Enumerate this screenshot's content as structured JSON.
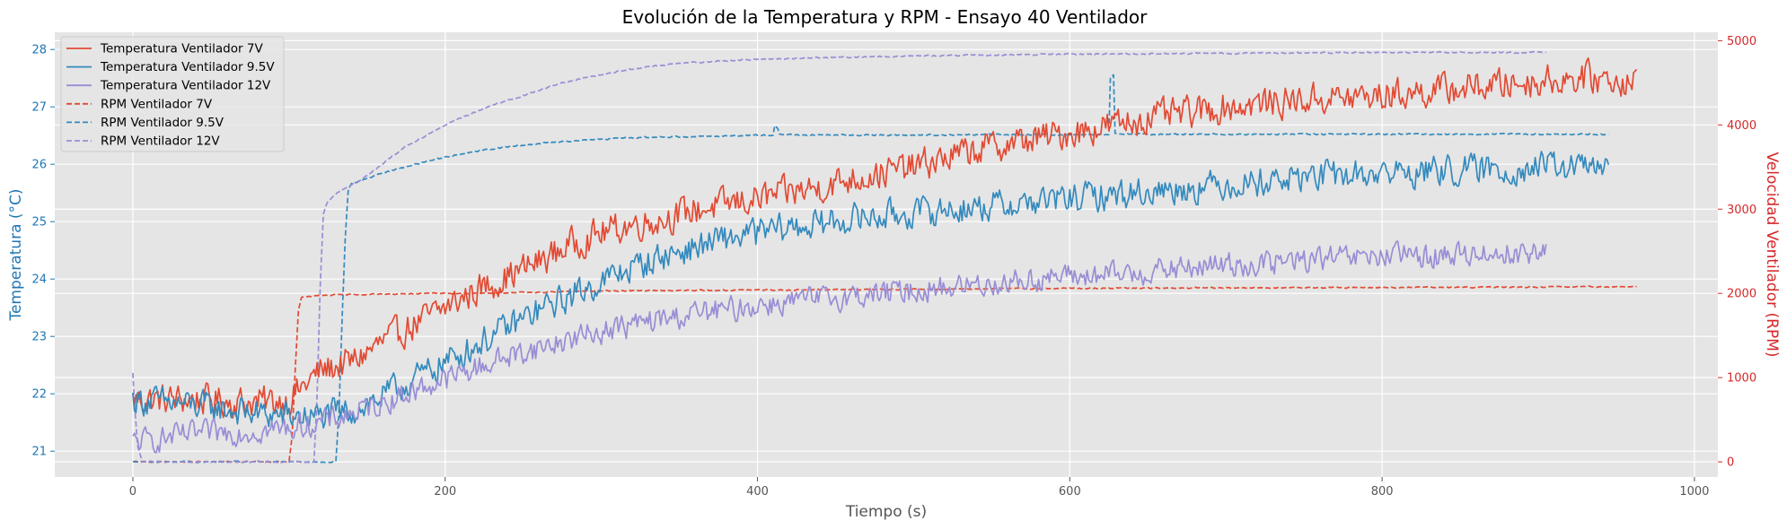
{
  "chart_data": {
    "type": "line",
    "title": "Evolución de la Temperatura y RPM - Ensayo 40 Ventilador",
    "xlabel": "Tiempo (s)",
    "ylabel_left": "Temperatura (°C)",
    "ylabel_right": "Velocidad Ventilador (RPM)",
    "xlim": [
      -50,
      1015
    ],
    "ylim_left": [
      20.55,
      28.3
    ],
    "ylim_right": [
      -180,
      5100
    ],
    "xticks": [
      "0",
      "200",
      "400",
      "600",
      "800",
      "1000"
    ],
    "yticks_left": [
      "21",
      "22",
      "23",
      "24",
      "25",
      "26",
      "27",
      "28"
    ],
    "yticks_right": [
      "0",
      "1000",
      "2000",
      "3000",
      "4000",
      "5000"
    ],
    "grid": true,
    "legend_position": "top-left",
    "colors": {
      "red": "#E24A33",
      "blue": "#348ABD",
      "purple": "#988ED5",
      "left_axis": "#1f77b4",
      "right_axis": "#d62728",
      "background": "#E5E5E5"
    },
    "series": [
      {
        "name": "Temperatura Ventilador 7V",
        "axis": "left",
        "style": "solid",
        "color": "#E24A33",
        "x": [
          0,
          40,
          80,
          100,
          120,
          140,
          160,
          180,
          200,
          220,
          240,
          260,
          280,
          300,
          320,
          340,
          360,
          380,
          400,
          420,
          440,
          460,
          480,
          500,
          520,
          540,
          560,
          580,
          600,
          620,
          640,
          660,
          680,
          700,
          720,
          740,
          760,
          780,
          800,
          820,
          840,
          860,
          880,
          900,
          920,
          940,
          963
        ],
        "values": [
          21.9,
          21.9,
          21.85,
          21.9,
          22.4,
          22.55,
          22.9,
          23.2,
          23.5,
          23.8,
          24.05,
          24.3,
          24.6,
          24.8,
          24.95,
          25.05,
          25.2,
          25.3,
          25.4,
          25.5,
          25.6,
          25.75,
          25.85,
          25.95,
          26.1,
          26.25,
          26.35,
          26.45,
          26.55,
          26.65,
          26.75,
          26.85,
          26.9,
          27.0,
          27.05,
          27.1,
          27.15,
          27.15,
          27.2,
          27.25,
          27.3,
          27.35,
          27.4,
          27.45,
          27.5,
          27.5,
          27.45
        ],
        "noise": 0.38
      },
      {
        "name": "Temperatura Ventilador 9.5V",
        "axis": "left",
        "style": "solid",
        "color": "#348ABD",
        "x": [
          0,
          40,
          80,
          100,
          120,
          140,
          160,
          180,
          200,
          220,
          240,
          260,
          280,
          300,
          320,
          340,
          360,
          380,
          400,
          420,
          440,
          460,
          480,
          500,
          520,
          540,
          560,
          580,
          600,
          620,
          640,
          660,
          680,
          700,
          720,
          740,
          760,
          780,
          800,
          820,
          840,
          860,
          880,
          900,
          920,
          945
        ],
        "values": [
          21.9,
          21.8,
          21.65,
          21.6,
          21.6,
          21.7,
          21.95,
          22.25,
          22.55,
          22.85,
          23.15,
          23.45,
          23.7,
          23.95,
          24.2,
          24.4,
          24.55,
          24.7,
          24.8,
          24.9,
          24.95,
          25.05,
          25.1,
          25.15,
          25.2,
          25.25,
          25.3,
          25.35,
          25.4,
          25.45,
          25.5,
          25.55,
          25.6,
          25.65,
          25.7,
          25.75,
          25.8,
          25.8,
          25.85,
          25.85,
          25.9,
          25.9,
          25.9,
          25.95,
          25.95,
          25.95
        ],
        "noise": 0.36
      },
      {
        "name": "Temperatura Ventilador 12V",
        "axis": "left",
        "style": "solid",
        "color": "#988ED5",
        "x": [
          0,
          40,
          80,
          100,
          120,
          140,
          160,
          180,
          200,
          220,
          240,
          260,
          280,
          300,
          320,
          340,
          360,
          380,
          400,
          420,
          440,
          460,
          480,
          500,
          520,
          540,
          560,
          580,
          600,
          620,
          640,
          660,
          680,
          700,
          720,
          740,
          760,
          780,
          800,
          820,
          840,
          860,
          880,
          905
        ],
        "values": [
          21.15,
          21.3,
          21.35,
          21.4,
          21.5,
          21.65,
          21.85,
          22.05,
          22.25,
          22.45,
          22.65,
          22.8,
          22.95,
          23.1,
          23.2,
          23.3,
          23.4,
          23.45,
          23.55,
          23.6,
          23.65,
          23.7,
          23.75,
          23.8,
          23.85,
          23.9,
          23.95,
          24.0,
          24.05,
          24.05,
          24.1,
          24.15,
          24.2,
          24.25,
          24.25,
          24.3,
          24.35,
          24.35,
          24.4,
          24.4,
          24.4,
          24.45,
          24.45,
          24.45
        ],
        "noise": 0.3
      },
      {
        "name": "RPM Ventilador 7V",
        "axis": "right",
        "style": "dashed",
        "color": "#E24A33",
        "x": [
          0,
          50,
          90,
          100,
          102,
          104,
          106,
          108,
          112,
          125,
          150,
          200,
          250,
          300,
          400,
          500,
          600,
          700,
          800,
          900,
          963
        ],
        "values": [
          0,
          0,
          0,
          0,
          300,
          1100,
          1800,
          1950,
          1960,
          1980,
          1990,
          2000,
          2010,
          2030,
          2040,
          2050,
          2060,
          2065,
          2070,
          2075,
          2080
        ],
        "noise": 10
      },
      {
        "name": "RPM Ventilador 9.5V",
        "axis": "right",
        "style": "dashed",
        "color": "#348ABD",
        "x": [
          0,
          50,
          100,
          130,
          132,
          134,
          136,
          138,
          140,
          160,
          180,
          200,
          220,
          240,
          260,
          280,
          300,
          320,
          350,
          380,
          400,
          410,
          411,
          413,
          414,
          430,
          450,
          500,
          550,
          600,
          625,
          626,
          628,
          629,
          650,
          700,
          750,
          800,
          850,
          900,
          945
        ],
        "values": [
          0,
          0,
          0,
          0,
          600,
          1700,
          2650,
          3250,
          3300,
          3430,
          3530,
          3620,
          3690,
          3740,
          3780,
          3810,
          3830,
          3850,
          3860,
          3870,
          3880,
          3880,
          4000,
          3960,
          3890,
          3880,
          3880,
          3880,
          3885,
          3885,
          3885,
          4570,
          4600,
          3900,
          3890,
          3890,
          3890,
          3890,
          3890,
          3890,
          3890
        ],
        "noise": 12
      },
      {
        "name": "RPM Ventilador 12V",
        "axis": "right",
        "style": "dashed",
        "color": "#988ED5",
        "x": [
          0,
          1,
          3,
          6,
          10,
          20,
          50,
          100,
          116,
          118,
          120,
          122,
          125,
          130,
          150,
          175,
          200,
          225,
          250,
          275,
          300,
          325,
          350,
          375,
          400,
          450,
          500,
          550,
          600,
          650,
          700,
          750,
          800,
          850,
          905
        ],
        "values": [
          1050,
          700,
          200,
          0,
          0,
          0,
          0,
          0,
          0,
          800,
          2100,
          2950,
          3100,
          3180,
          3400,
          3750,
          4000,
          4200,
          4350,
          4500,
          4600,
          4680,
          4730,
          4760,
          4780,
          4800,
          4820,
          4830,
          4840,
          4845,
          4850,
          4855,
          4860,
          4860,
          4860
        ],
        "noise": 12
      }
    ]
  }
}
